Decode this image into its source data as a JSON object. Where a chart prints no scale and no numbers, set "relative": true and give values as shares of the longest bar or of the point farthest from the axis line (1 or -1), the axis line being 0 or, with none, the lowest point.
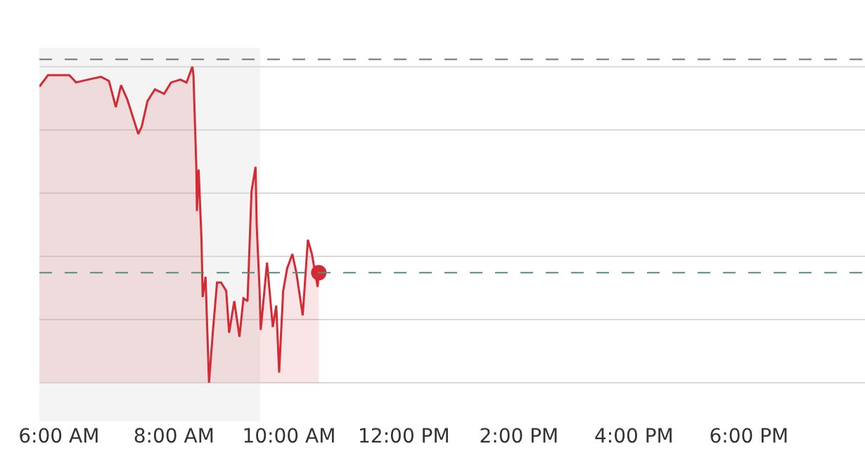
{
  "chart_data": {
    "type": "area",
    "relative": true,
    "xlim": [
      5.66,
      20.02
    ],
    "xticks": [
      {
        "value": 6,
        "label": "6:00 AM"
      },
      {
        "value": 8,
        "label": "8:00 AM"
      },
      {
        "value": 10,
        "label": "10:00 AM"
      },
      {
        "value": 12,
        "label": "12:00 PM"
      },
      {
        "value": 14,
        "label": "2:00 PM"
      },
      {
        "value": 16,
        "label": "4:00 PM"
      },
      {
        "value": 18,
        "label": "6:00 PM"
      }
    ],
    "series": [
      {
        "color": "#d42a34",
        "x": [
          5.66,
          5.81,
          6.18,
          6.3,
          6.41,
          6.73,
          6.87,
          6.99,
          7.08,
          7.19,
          7.38,
          7.44,
          7.54,
          7.67,
          7.83,
          7.95,
          8.11,
          8.22,
          8.32,
          8.34,
          8.39,
          8.4,
          8.43,
          8.48,
          8.5,
          8.55,
          8.61,
          8.68,
          8.75,
          8.82,
          8.91,
          8.96,
          9.05,
          9.14,
          9.21,
          9.28,
          9.35,
          9.42,
          9.44,
          9.49,
          9.51,
          9.58,
          9.62,
          9.72,
          9.78,
          9.83,
          9.9,
          9.97,
          10.06,
          10.13,
          10.24,
          10.33,
          10.4,
          10.5,
          10.52
        ],
        "values": [
          0.937,
          0.973,
          0.973,
          0.95,
          0.955,
          0.968,
          0.955,
          0.872,
          0.941,
          0.896,
          0.787,
          0.81,
          0.891,
          0.928,
          0.914,
          0.95,
          0.959,
          0.95,
          1.0,
          0.973,
          0.679,
          0.543,
          0.674,
          0.452,
          0.271,
          0.335,
          0.0,
          0.167,
          0.317,
          0.317,
          0.29,
          0.158,
          0.258,
          0.145,
          0.267,
          0.258,
          0.606,
          0.683,
          0.498,
          0.294,
          0.167,
          0.303,
          0.38,
          0.176,
          0.244,
          0.032,
          0.29,
          0.362,
          0.407,
          0.348,
          0.213,
          0.452,
          0.407,
          0.303,
          0.348
        ]
      },
      {
        "type": "scatter",
        "color": "#d42a34",
        "x": [
          10.52
        ],
        "values": [
          0.348
        ]
      }
    ],
    "ref_lines": [
      {
        "axis": "y",
        "value": 1.023,
        "color": "#707070",
        "line_style": "dashed"
      },
      {
        "axis": "y",
        "value": 0.348,
        "color": "#4f8f7f",
        "line_style": "dashed"
      }
    ],
    "bands": [
      {
        "axis": "x",
        "from": 5.66,
        "to": 9.5,
        "color": "#f4f4f4"
      }
    ],
    "grid": "y"
  }
}
